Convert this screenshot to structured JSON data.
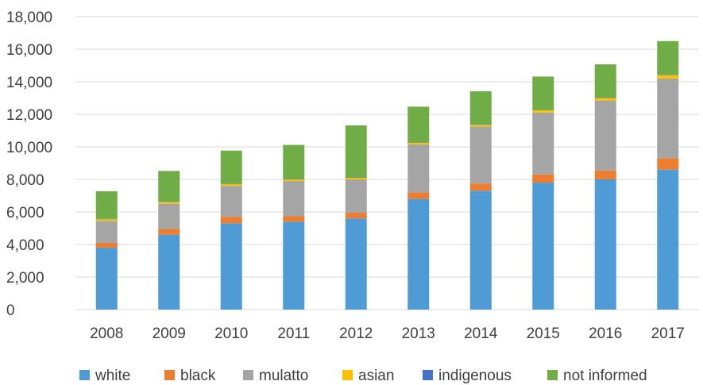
{
  "chart_data": {
    "type": "bar",
    "stacked": true,
    "title": "",
    "xlabel": "",
    "ylabel": "",
    "categories": [
      "2008",
      "2009",
      "2010",
      "2011",
      "2012",
      "2013",
      "2014",
      "2015",
      "2016",
      "2017"
    ],
    "ylim": [
      0,
      18000
    ],
    "yticks": [
      0,
      2000,
      4000,
      6000,
      8000,
      10000,
      12000,
      14000,
      16000,
      18000
    ],
    "ytick_labels": [
      "0",
      "2,000",
      "4,000",
      "6,000",
      "8,000",
      "10,000",
      "12,000",
      "14,000",
      "16,000",
      "18,000"
    ],
    "grid": true,
    "legend_position": "bottom",
    "series": [
      {
        "name": "white",
        "color": "#4e9bd6",
        "values": [
          3800,
          4600,
          5300,
          5400,
          5600,
          6800,
          7300,
          7800,
          8000,
          8600
        ]
      },
      {
        "name": "black",
        "color": "#ed7d31",
        "values": [
          300,
          350,
          400,
          350,
          350,
          400,
          450,
          500,
          550,
          700
        ]
      },
      {
        "name": "mulatto",
        "color": "#a5a5a5",
        "values": [
          1350,
          1550,
          1900,
          2150,
          2050,
          2950,
          3500,
          3800,
          4300,
          4900
        ]
      },
      {
        "name": "asian",
        "color": "#ffc000",
        "values": [
          100,
          100,
          100,
          100,
          100,
          100,
          100,
          150,
          150,
          200
        ]
      },
      {
        "name": "indigenous",
        "color": "#4472c4",
        "values": [
          20,
          20,
          20,
          20,
          20,
          20,
          20,
          20,
          20,
          20
        ]
      },
      {
        "name": "not informed",
        "color": "#70ad47",
        "values": [
          1700,
          1900,
          2050,
          2100,
          3200,
          2200,
          2050,
          2050,
          2050,
          2080
        ]
      }
    ]
  }
}
